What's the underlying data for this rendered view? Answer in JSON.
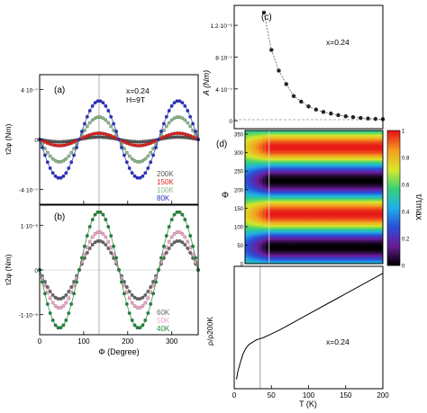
{
  "chart_data": [
    {
      "panel": "(a)",
      "type": "scatter",
      "ylabel": "τ2φ (Nm)",
      "xlabel": "",
      "xlim": [
        0,
        360
      ],
      "ylim": [
        -5.2e-07,
        5.2e-07
      ],
      "yticks": [
        {
          "value": 4e-07,
          "label": "4·10⁻⁷"
        },
        {
          "value": 0,
          "label": "0"
        },
        {
          "value": -4e-07,
          "label": "-4·10⁻⁷"
        }
      ],
      "xticks": [
        0,
        100,
        200,
        300
      ],
      "vline": 135,
      "annotations": [
        "x=0.24",
        "H=9T"
      ],
      "series": [
        {
          "name": "200K",
          "amplitude": 2e-08,
          "color": "#555555"
        },
        {
          "name": "150K",
          "amplitude": 5e-08,
          "color": "#e02020"
        },
        {
          "name": "100K",
          "amplitude": 1.8e-07,
          "color": "#8ab88a"
        },
        {
          "name": "80K",
          "amplitude": 3.1e-07,
          "color": "#2a33c8"
        }
      ],
      "curve": "-amplitude * sin(2*phi)",
      "legend": "lower-right"
    },
    {
      "panel": "(b)",
      "type": "scatter",
      "ylabel": "τ2φ (Nm)",
      "xlabel": "Φ (Degree)",
      "xlim": [
        0,
        360
      ],
      "ylim": [
        -1.45e-06,
        1.45e-06
      ],
      "yticks": [
        {
          "value": 1e-06,
          "label": "1·10⁻⁶"
        },
        {
          "value": 0,
          "label": "0"
        },
        {
          "value": -1e-06,
          "label": "-1·10⁻⁶"
        }
      ],
      "xticks": [
        0,
        100,
        200,
        300
      ],
      "vline": 135,
      "series": [
        {
          "name": "60K",
          "amplitude": 6.5e-07,
          "color": "#666666"
        },
        {
          "name": "50K",
          "amplitude": 8.5e-07,
          "color": "#f2a6c8"
        },
        {
          "name": "40K",
          "amplitude": 1.3e-06,
          "color": "#1f8a3c"
        }
      ],
      "curve": "-amplitude * sin(2*phi)",
      "legend": "lower-right"
    },
    {
      "panel": "(c)",
      "type": "scatter",
      "ylabel": "A (Nm)",
      "xlabel": "",
      "xlim": [
        0,
        200
      ],
      "ylim": [
        -1e-07,
        1.45e-06
      ],
      "yticks": [
        {
          "value": 1.2e-06,
          "label": "1.2·10⁻⁶"
        },
        {
          "value": 8e-07,
          "label": "8·10⁻⁷"
        },
        {
          "value": 4e-07,
          "label": "4·10⁻⁷"
        },
        {
          "value": 0,
          "label": "0"
        }
      ],
      "annotations": [
        "x=0.24"
      ],
      "x": [
        40,
        50,
        60,
        70,
        80,
        90,
        100,
        110,
        120,
        130,
        140,
        150,
        160,
        170,
        180,
        190,
        200
      ],
      "y": [
        1.36e-06,
        8.9e-07,
        6.3e-07,
        4.6e-07,
        3.1e-07,
        2.4e-07,
        1.8e-07,
        1.4e-07,
        1.1e-07,
        9e-08,
        7e-08,
        5.5e-08,
        4.5e-08,
        3.5e-08,
        2.8e-08,
        2.2e-08,
        2e-08
      ]
    },
    {
      "panel": "(d)",
      "type": "heatmap",
      "ylabel": "Φ",
      "xlabel": "",
      "xlim": [
        0,
        200
      ],
      "ylim": [
        0,
        360
      ],
      "yticks": [
        0,
        50,
        100,
        150,
        200,
        250,
        300,
        350
      ],
      "colorbar_label": "τ/τmax",
      "colorbar_ticks": [
        0,
        0.2,
        0.4,
        0.6,
        0.8,
        1
      ],
      "colorbar_colors": [
        "#000000",
        "#6a1d9a",
        "#2a4fd8",
        "#1fb0e8",
        "#36d07a",
        "#d8e82a",
        "#f4a020",
        "#e81818"
      ],
      "vline": 35
    },
    {
      "panel": "",
      "type": "line",
      "ylabel": "ρ/ρ200K",
      "xlabel": "T (K)",
      "xlim": [
        0,
        200
      ],
      "ylim": [
        0,
        1.05
      ],
      "xticks": [
        0,
        50,
        100,
        150,
        200
      ],
      "annotations": [
        "x=0.24"
      ],
      "vline": 35,
      "x": [
        3,
        5,
        8,
        12,
        16,
        20,
        25,
        30,
        35,
        40,
        50,
        60,
        80,
        100,
        120,
        140,
        160,
        180,
        200
      ],
      "y": [
        0.08,
        0.15,
        0.22,
        0.3,
        0.35,
        0.38,
        0.4,
        0.42,
        0.43,
        0.44,
        0.47,
        0.5,
        0.57,
        0.64,
        0.71,
        0.78,
        0.85,
        0.92,
        0.99
      ]
    }
  ]
}
